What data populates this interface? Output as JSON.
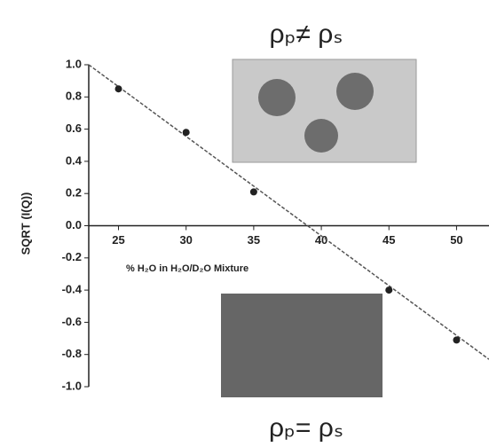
{
  "chart_data": {
    "type": "scatter",
    "annotations": [
      "ρₚ≠ ρₛ",
      "ρₚ= ρₛ"
    ],
    "x_label": "% H₂O in H₂O/D₂O Mixture",
    "y_label": "SQRT (I(Q))",
    "x": [
      25,
      30,
      35,
      45,
      50
    ],
    "values": [
      0.85,
      0.58,
      0.21,
      -0.4,
      -0.71
    ],
    "color": "#222222",
    "fit_line": {
      "x": [
        22.8,
        52.4
      ],
      "values": [
        1.0,
        -0.83
      ],
      "color": "#555555"
    },
    "xlim": [
      22.8,
      52.4
    ],
    "xticks": [
      25,
      30,
      35,
      40,
      45,
      50
    ],
    "ylim": [
      -1.0,
      1.0
    ],
    "yticks": [
      {
        "value": 1,
        "label": "1.0"
      },
      0.8,
      0.6,
      0.4,
      0.2,
      {
        "value": 0,
        "label": "0.0"
      },
      -0.2,
      -0.4,
      -0.6,
      -0.8,
      {
        "value": -1,
        "label": "-1.0"
      }
    ]
  }
}
